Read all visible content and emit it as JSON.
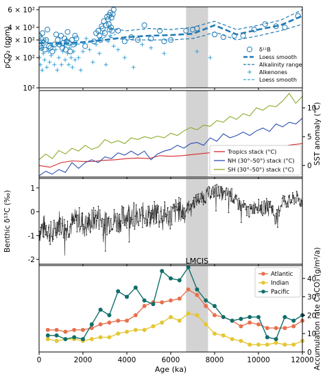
{
  "figure": {
    "shared_x": {
      "label": "Age (ka)",
      "ticks": [
        "0",
        "2000",
        "4000",
        "6000",
        "8000",
        "10000",
        "12000"
      ],
      "range": [
        0,
        12000
      ],
      "event_band": {
        "label": "LMCIS",
        "from": 6700,
        "to": 7700,
        "color": "#d3d3d3"
      }
    }
  },
  "chart_data": [
    {
      "type": "scatter",
      "panel": "co2",
      "ylabel": "pCO₂ (ppm)",
      "y_scale": "log",
      "ylim": [
        100,
        640
      ],
      "yticks": [
        {
          "value": 100,
          "label": "10²"
        },
        {
          "value": 200,
          "label": "2 × 10²"
        },
        {
          "value": 300,
          "label": "3 × 10²"
        },
        {
          "value": 400,
          "label": "4 × 10²"
        },
        {
          "value": 600,
          "label": "6 × 10²"
        }
      ],
      "legend": {
        "position": "bottom-right",
        "entries": [
          {
            "label": "δ¹¹B",
            "style": "circle",
            "color": "#1f7ab5"
          },
          {
            "label": "Loess smooth",
            "style": "thick-dash",
            "color": "#1f7ab5"
          },
          {
            "label": "Alkalinity range",
            "style": "dash",
            "color": "#1f7ab5"
          },
          {
            "label": "Alkenones",
            "style": "plus",
            "color": "#36a3d8"
          },
          {
            "label": "Loess smooth",
            "style": "dash",
            "color": "#36a3d8"
          }
        ]
      },
      "series": [
        {
          "name": "δ¹¹B",
          "color": "#1f7ab5",
          "x": [
            10,
            30,
            50,
            80,
            110,
            150,
            200,
            260,
            320,
            380,
            450,
            520,
            600,
            700,
            780,
            850,
            930,
            1000,
            1060,
            1100,
            1160,
            1210,
            1260,
            1300,
            1360,
            1420,
            1500,
            1560,
            1640,
            1700,
            2100,
            2500,
            2600,
            2700,
            2750,
            2800,
            2850,
            2900,
            2950,
            3000,
            3050,
            3100,
            3150,
            3180,
            3200,
            3220,
            3250,
            3280,
            3300,
            3330,
            3360,
            3400,
            3600,
            3900,
            4200,
            4500,
            4800,
            5100,
            5500,
            5700,
            6000,
            6700,
            7000,
            7200,
            8000,
            8400,
            8900,
            9300,
            9800,
            10300,
            10800,
            11200,
            11800
          ],
          "y": [
            330,
            290,
            260,
            310,
            250,
            350,
            280,
            240,
            300,
            380,
            260,
            250,
            230,
            270,
            340,
            300,
            270,
            330,
            250,
            280,
            310,
            240,
            290,
            360,
            280,
            230,
            300,
            270,
            330,
            310,
            260,
            290,
            350,
            370,
            330,
            300,
            410,
            390,
            460,
            350,
            420,
            510,
            480,
            430,
            530,
            380,
            560,
            400,
            500,
            370,
            540,
            600,
            370,
            290,
            320,
            300,
            420,
            310,
            370,
            290,
            300,
            370,
            380,
            390,
            340,
            320,
            330,
            330,
            380,
            430,
            410,
            400,
            520
          ]
        },
        {
          "name": "Loess smooth",
          "color": "#1f7ab5",
          "x": [
            0,
            1000,
            2000,
            3000,
            4000,
            5000,
            6000,
            7000,
            7500,
            8000,
            9000,
            10000,
            11000,
            12000
          ],
          "y": [
            280,
            275,
            285,
            300,
            320,
            330,
            335,
            345,
            380,
            420,
            340,
            380,
            420,
            520
          ]
        },
        {
          "name": "Alkalinity range (upper)",
          "color": "#1f7ab5",
          "x": [
            3200,
            4000,
            5000,
            6000,
            7000,
            7500,
            8000,
            9000,
            10000,
            11000,
            12000
          ],
          "y": [
            390,
            370,
            390,
            380,
            400,
            430,
            460,
            380,
            420,
            470,
            600
          ]
        },
        {
          "name": "Alkalinity range (lower)",
          "color": "#1f7ab5",
          "x": [
            3200,
            4000,
            5000,
            6000,
            7000,
            7500,
            8000,
            9000,
            10000,
            11000,
            12000
          ],
          "y": [
            320,
            300,
            300,
            300,
            310,
            330,
            360,
            300,
            330,
            370,
            430
          ]
        },
        {
          "name": "Alkenones",
          "color": "#36a3d8",
          "x": [
            20,
            60,
            100,
            140,
            190,
            250,
            300,
            350,
            420,
            480,
            550,
            620,
            700,
            760,
            830,
            900,
            960,
            1020,
            1080,
            1140,
            1190,
            1240,
            1300,
            1350,
            1400,
            1460,
            1520,
            1580,
            1640,
            1700,
            1800,
            1900,
            2000,
            2150,
            2300,
            2450,
            2600,
            2750,
            2900,
            3050,
            3150,
            3250,
            3400,
            3600,
            3900,
            4300,
            4700,
            5100,
            5700,
            7200,
            7800
          ],
          "y": [
            200,
            170,
            250,
            150,
            220,
            190,
            300,
            160,
            230,
            180,
            210,
            260,
            170,
            240,
            150,
            200,
            280,
            170,
            230,
            260,
            190,
            300,
            220,
            170,
            250,
            200,
            160,
            230,
            190,
            270,
            200,
            150,
            230,
            310,
            240,
            180,
            270,
            220,
            350,
            170,
            290,
            330,
            260,
            240,
            200,
            160,
            270,
            250,
            220,
            230,
            200
          ]
        },
        {
          "name": "Loess smooth",
          "color": "#36a3d8",
          "x": [
            0,
            500,
            1000,
            1500,
            2000,
            2500,
            3000,
            3500
          ],
          "y": [
            300,
            275,
            265,
            270,
            275,
            290,
            320,
            340
          ]
        }
      ]
    },
    {
      "type": "line",
      "panel": "sst",
      "ylabel": "SST anomaly (°C)",
      "ylim": [
        -2,
        13
      ],
      "yticks": [
        0,
        5,
        10
      ],
      "legend": {
        "position": "bottom-right",
        "entries": [
          "Tropics stack (°C)",
          "NH (30°–50°) stack (°C)",
          "SH (30°–50°) stack (°C)"
        ]
      },
      "series": [
        {
          "name": "Tropics stack (°C)",
          "color": "#d62728",
          "x": [
            0,
            500,
            1000,
            1500,
            2000,
            2500,
            3000,
            3500,
            4000,
            4500,
            5000,
            5500,
            6000,
            6500,
            7000,
            7500,
            8000,
            8500,
            9000,
            9500,
            10000,
            10500,
            11000,
            11500,
            12000
          ],
          "y": [
            0.0,
            -0.3,
            0.5,
            0.8,
            0.7,
            0.7,
            0.9,
            1.0,
            1.2,
            1.3,
            1.2,
            1.7,
            1.6,
            1.7,
            1.9,
            2.1,
            2.3,
            2.3,
            2.5,
            2.9,
            2.8,
            3.2,
            3.3,
            3.6,
            3.8
          ]
        },
        {
          "name": "NH (30°–50°) stack (°C)",
          "color": "#2c4fb0",
          "x": [
            0,
            300,
            600,
            900,
            1200,
            1500,
            1800,
            2100,
            2400,
            2700,
            3000,
            3300,
            3600,
            3900,
            4200,
            4500,
            4800,
            5100,
            5400,
            5700,
            6000,
            6300,
            6600,
            6900,
            7200,
            7500,
            7800,
            8100,
            8400,
            8700,
            9000,
            9300,
            9600,
            9900,
            10200,
            10500,
            10800,
            11100,
            11400,
            11700,
            12000
          ],
          "y": [
            -1.8,
            -1.0,
            -1.5,
            -0.7,
            -1.2,
            0.5,
            -0.5,
            0.5,
            1.0,
            0.5,
            1.5,
            1.2,
            2.2,
            1.8,
            2.5,
            1.8,
            2.5,
            1.0,
            2.0,
            2.5,
            2.8,
            3.5,
            3.0,
            3.8,
            4.0,
            3.5,
            4.8,
            4.2,
            5.5,
            4.8,
            5.2,
            5.8,
            5.2,
            6.0,
            6.5,
            5.9,
            7.2,
            6.7,
            7.5,
            7.2,
            8.2
          ]
        },
        {
          "name": "SH (30°–50°) stack (°C)",
          "color": "#8aaa2a",
          "x": [
            0,
            300,
            600,
            900,
            1200,
            1500,
            1800,
            2100,
            2400,
            2700,
            3000,
            3300,
            3600,
            3900,
            4200,
            4500,
            4800,
            5100,
            5400,
            5700,
            6000,
            6300,
            6600,
            6900,
            7200,
            7500,
            7800,
            8100,
            8400,
            8700,
            9000,
            9300,
            9600,
            9900,
            10200,
            10500,
            10800,
            11100,
            11400,
            11700,
            12000
          ],
          "y": [
            1.0,
            2.0,
            1.2,
            2.6,
            2.0,
            3.0,
            2.5,
            3.5,
            2.8,
            3.2,
            4.5,
            3.9,
            4.3,
            3.8,
            4.8,
            4.5,
            5.0,
            4.7,
            5.1,
            4.8,
            5.6,
            5.2,
            6.0,
            6.6,
            6.2,
            7.0,
            6.8,
            7.8,
            7.5,
            8.5,
            8.0,
            9.0,
            8.6,
            10.0,
            9.6,
            10.4,
            10.2,
            11.2,
            12.5,
            10.8,
            12.0
          ]
        }
      ]
    },
    {
      "type": "scatter",
      "panel": "d13c",
      "ylabel": "Benthic δ¹³C (‰)",
      "ylim": [
        -2.2,
        1.4
      ],
      "yticks": [
        -2,
        -1,
        0,
        1
      ],
      "series": [
        {
          "name": "Benthic δ¹³C",
          "color": "#222222",
          "x": [
            0,
            300,
            600,
            900,
            1200,
            1500,
            1800,
            2100,
            2400,
            2700,
            3000,
            3300,
            3600,
            3900,
            4200,
            4500,
            4800,
            5100,
            5400,
            5700,
            6000,
            6300,
            6600,
            6900,
            7200,
            7500,
            7800,
            8100,
            8400,
            8700,
            9000,
            9300,
            9600,
            9900,
            10200,
            10500,
            10800,
            11100,
            11400,
            11700,
            12000
          ],
          "y": [
            -0.8,
            -0.6,
            -1.0,
            -0.4,
            -0.7,
            -0.5,
            -0.3,
            -0.6,
            -0.4,
            -0.2,
            -0.5,
            -0.3,
            -0.4,
            -0.2,
            0.0,
            -0.3,
            -0.1,
            -0.2,
            0.0,
            -0.1,
            -0.2,
            0.1,
            0.0,
            0.3,
            0.5,
            0.6,
            0.8,
            0.9,
            0.7,
            0.8,
            0.4,
            0.2,
            0.0,
            0.3,
            0.1,
            0.4,
            -0.3,
            0.5,
            0.4,
            0.6,
            0.4
          ]
        }
      ]
    },
    {
      "type": "line",
      "panel": "accumulation",
      "ylabel": "Accumulation rate CaCO₃ (g/m²/a)",
      "ylim": [
        0,
        47
      ],
      "yticks": [
        0,
        10,
        20,
        30,
        40
      ],
      "legend": {
        "position": "top-right",
        "entries": [
          "Atlantic",
          "Indian",
          "Pacific"
        ]
      },
      "series": [
        {
          "name": "Atlantic",
          "color": "#e8704e",
          "x": [
            400,
            800,
            1200,
            1600,
            2000,
            2400,
            2800,
            3200,
            3600,
            4000,
            4400,
            4800,
            5200,
            5600,
            6000,
            6400,
            6800,
            7200,
            7600,
            8000,
            8400,
            8800,
            9200,
            9600,
            10000,
            10400,
            10800,
            11200,
            11600,
            12000
          ],
          "y": [
            12,
            12,
            11,
            12,
            12,
            13,
            15,
            16,
            17,
            17,
            20,
            25,
            27,
            27,
            28,
            29,
            34,
            31,
            25,
            20,
            19,
            17,
            14,
            16,
            15,
            13,
            13,
            13,
            14,
            17
          ]
        },
        {
          "name": "Indian",
          "color": "#e4c634",
          "x": [
            400,
            800,
            1200,
            1600,
            2000,
            2400,
            2800,
            3200,
            3600,
            4000,
            4400,
            4800,
            5200,
            5600,
            6000,
            6400,
            6800,
            7200,
            7600,
            8000,
            8400,
            8800,
            9200,
            9600,
            10000,
            10400,
            10800,
            11200,
            11600,
            12000
          ],
          "y": [
            7,
            6,
            7,
            7,
            6,
            7,
            8,
            8,
            10,
            11,
            12,
            12,
            14,
            16,
            19,
            17,
            21,
            20,
            15,
            10,
            9,
            7,
            6,
            4,
            4,
            4,
            5,
            4,
            4,
            6
          ]
        },
        {
          "name": "Pacific",
          "color": "#0f6e68",
          "x": [
            400,
            800,
            1200,
            1600,
            2000,
            2400,
            2800,
            3200,
            3600,
            4000,
            4400,
            4800,
            5200,
            5600,
            6000,
            6400,
            6800,
            7200,
            7600,
            8000,
            8400,
            8800,
            9200,
            9600,
            10000,
            10400,
            10800,
            11200,
            11600,
            12000
          ],
          "y": [
            9,
            9,
            7,
            8,
            7,
            15,
            23,
            20,
            33,
            30,
            35,
            28,
            26,
            44,
            40,
            39,
            46,
            34,
            28,
            25,
            19,
            17,
            18,
            19,
            19,
            8,
            7,
            19,
            17,
            20
          ]
        }
      ]
    }
  ]
}
